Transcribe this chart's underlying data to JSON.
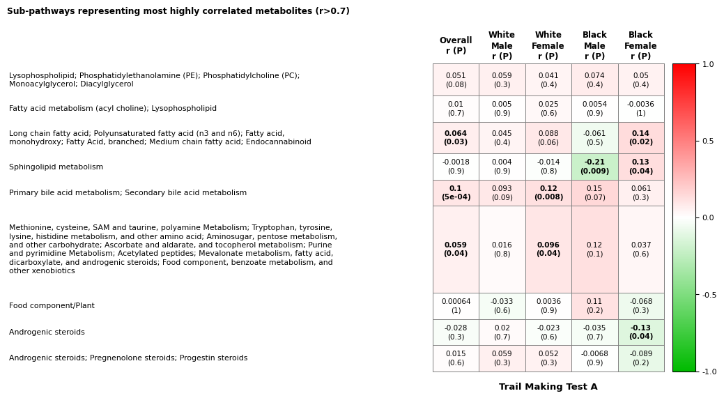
{
  "title": "Sub-pathways representing most highly correlated metabolites (r>0.7)",
  "xlabel": "Trail Making Test A",
  "col_headers": [
    "Overall\nr (P)",
    "White\nMale\nr (P)",
    "White\nFemale\nr (P)",
    "Black\nMale\nr (P)",
    "Black\nFemale\nr (P)"
  ],
  "row_labels": [
    "Lysophospholipid; Phosphatidylethanolamine (PE); Phosphatidylcholine (PC);\nMonoacylglycerol; Diacylglycerol",
    "Fatty acid metabolism (acyl choline); Lysophospholipid",
    "Long chain fatty acid; Polyunsaturated fatty acid (n3 and n6); Fatty acid,\nmonohydroxy; Fatty Acid, branched; Medium chain fatty acid; Endocannabinoid",
    "Sphingolipid metabolism",
    "Primary bile acid metabolism; Secondary bile acid metabolism",
    "Methionine, cysteine, SAM and taurine, polyamine Metabolism; Tryptophan, tyrosine,\nlysine, histidine metabolism, and other amino acid; Aminosugar, pentose metabolism,\nand other carbohydrate; Ascorbate and aldarate, and tocopherol metabolism; Purine\nand pyrimidine Metabolism; Acetylated peptides; Mevalonate metabolism, fatty acid,\ndicarboxylate, and androgenic steroids; Food component, benzoate metabolism, and\nother xenobiotics",
    "Food component/Plant",
    "Androgenic steroids",
    "Androgenic steroids; Pregnenolone steroids; Progestin steroids"
  ],
  "cell_values": [
    [
      "0.051\n(0.08)",
      "0.059\n(0.3)",
      "0.041\n(0.4)",
      "0.074\n(0.4)",
      "0.05\n(0.4)"
    ],
    [
      "0.01\n(0.7)",
      "0.005\n(0.9)",
      "0.025\n(0.6)",
      "0.0054\n(0.9)",
      "-0.0036\n(1)"
    ],
    [
      "0.064\n(0.03)",
      "0.045\n(0.4)",
      "0.088\n(0.06)",
      "-0.061\n(0.5)",
      "0.14\n(0.02)"
    ],
    [
      "-0.0018\n(0.9)",
      "0.004\n(0.9)",
      "-0.014\n(0.8)",
      "-0.21\n(0.009)",
      "0.13\n(0.04)"
    ],
    [
      "0.1\n(5e-04)",
      "0.093\n(0.09)",
      "0.12\n(0.008)",
      "0.15\n(0.07)",
      "0.061\n(0.3)"
    ],
    [
      "0.059\n(0.04)",
      "0.016\n(0.8)",
      "0.096\n(0.04)",
      "0.12\n(0.1)",
      "0.037\n(0.6)"
    ],
    [
      "0.00064\n(1)",
      "-0.033\n(0.6)",
      "0.0036\n(0.9)",
      "0.11\n(0.2)",
      "-0.068\n(0.3)"
    ],
    [
      "-0.028\n(0.3)",
      "0.02\n(0.7)",
      "-0.023\n(0.6)",
      "-0.035\n(0.7)",
      "-0.13\n(0.04)"
    ],
    [
      "0.015\n(0.6)",
      "0.059\n(0.3)",
      "0.052\n(0.3)",
      "-0.0068\n(0.9)",
      "-0.089\n(0.2)"
    ]
  ],
  "r_values": [
    [
      0.051,
      0.059,
      0.041,
      0.074,
      0.05
    ],
    [
      0.01,
      0.005,
      0.025,
      0.0054,
      -0.0036
    ],
    [
      0.064,
      0.045,
      0.088,
      -0.061,
      0.14
    ],
    [
      -0.0018,
      0.004,
      -0.014,
      -0.21,
      0.13
    ],
    [
      0.1,
      0.093,
      0.12,
      0.15,
      0.061
    ],
    [
      0.059,
      0.016,
      0.096,
      0.12,
      0.037
    ],
    [
      0.00064,
      -0.033,
      0.0036,
      0.11,
      -0.068
    ],
    [
      -0.028,
      0.02,
      -0.023,
      -0.035,
      -0.13
    ],
    [
      0.015,
      0.059,
      0.052,
      -0.0068,
      -0.089
    ]
  ],
  "p_values": [
    [
      0.08,
      0.3,
      0.4,
      0.4,
      0.4
    ],
    [
      0.7,
      0.9,
      0.6,
      0.9,
      1.0
    ],
    [
      0.03,
      0.4,
      0.06,
      0.5,
      0.02
    ],
    [
      0.9,
      0.9,
      0.8,
      0.009,
      0.04
    ],
    [
      0.0005,
      0.09,
      0.008,
      0.07,
      0.3
    ],
    [
      0.04,
      0.8,
      0.04,
      0.1,
      0.6
    ],
    [
      1.0,
      0.6,
      0.9,
      0.2,
      0.3
    ],
    [
      0.3,
      0.7,
      0.6,
      0.7,
      0.04
    ],
    [
      0.6,
      0.3,
      0.3,
      0.9,
      0.2
    ]
  ],
  "row_line_counts": [
    2,
    1,
    2,
    1,
    1,
    6,
    1,
    1,
    1
  ],
  "significance_threshold": 0.05,
  "colorbar_ticks": [
    1.0,
    0.5,
    0.0,
    -0.5,
    -1.0
  ],
  "vmin": -1.0,
  "vmax": 1.0,
  "background_color": "#ffffff",
  "header_lines": 3,
  "title_lines": 1,
  "cell_fontsize": 7.5,
  "label_fontsize": 7.8,
  "header_fontsize": 8.5,
  "title_fontsize": 8.8
}
